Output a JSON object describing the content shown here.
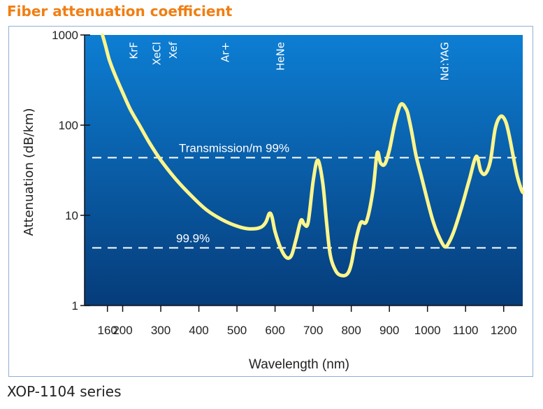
{
  "page": {
    "title": "Fiber attenuation coefficient",
    "caption": "XOP-1104 series"
  },
  "colors": {
    "title": "#f07e12",
    "curve": "#fdf58c",
    "plot_top": "#0d7ed3",
    "plot_bottom": "#063c7a",
    "reference_line": "#ffffff"
  },
  "chart_data": {
    "type": "line",
    "title": "Fiber attenuation coefficient",
    "xlabel": "Wavelength (nm)",
    "ylabel": "Attenuation (dB/km)",
    "xscale": "linear",
    "yscale": "log",
    "xlim": [
      100,
      1250
    ],
    "ylim": [
      1,
      1000
    ],
    "x_ticks": [
      160,
      200,
      300,
      400,
      500,
      600,
      700,
      800,
      900,
      1000,
      1100,
      1200
    ],
    "x_tick_labels": [
      "160",
      "200",
      "300",
      "400",
      "500",
      "600",
      "700",
      "800",
      "900",
      "1000",
      "1100",
      "1200"
    ],
    "y_ticks": [
      1,
      10,
      100,
      1000
    ],
    "y_tick_labels": [
      "1",
      "10",
      "100",
      "1000"
    ],
    "grid": false,
    "legend": "none",
    "series": [
      {
        "name": "Attenuation",
        "x": [
          147,
          155,
          165,
          180,
          200,
          220,
          245,
          270,
          300,
          340,
          380,
          420,
          460,
          500,
          530,
          560,
          575,
          585,
          592,
          600,
          615,
          630,
          643,
          655,
          668,
          677,
          687,
          700,
          712,
          725,
          735,
          745,
          760,
          775,
          790,
          800,
          812,
          825,
          840,
          857,
          868,
          877,
          888,
          900,
          915,
          930,
          945,
          952,
          960,
          970,
          985,
          1000,
          1015,
          1030,
          1045,
          1055,
          1070,
          1090,
          1110,
          1128,
          1140,
          1152,
          1165,
          1178,
          1192,
          1205,
          1215,
          1225,
          1235,
          1245,
          1250
        ],
        "y": [
          1000,
          760,
          530,
          360,
          230,
          150,
          98,
          64,
          41,
          25,
          16.5,
          11.5,
          9,
          7.6,
          7.1,
          7.3,
          8.3,
          10.5,
          9.6,
          6.6,
          4.3,
          3.4,
          3.6,
          5.4,
          8.8,
          7.9,
          8.4,
          24,
          41,
          23,
          8.5,
          3.6,
          2.4,
          2.15,
          2.25,
          2.9,
          5.3,
          8.3,
          8.6,
          19,
          49,
          38,
          37,
          53,
          108,
          170,
          148,
          115,
          78,
          46,
          26,
          14.5,
          8.5,
          5.8,
          4.5,
          4.9,
          6.8,
          12.5,
          25,
          45,
          31,
          29,
          40,
          92,
          125,
          110,
          75,
          45,
          28,
          20,
          18
        ]
      }
    ],
    "reference_lines": [
      {
        "label": "Transmission/m 99%",
        "y": 43.6
      },
      {
        "label": "99.9%",
        "y": 4.36
      }
    ],
    "annotations": [
      {
        "text": "KrF",
        "x": 248
      },
      {
        "text": "XeCl",
        "x": 308
      },
      {
        "text": "Xef",
        "x": 351
      },
      {
        "text": "Ar+",
        "x": 488
      },
      {
        "text": "HeNe",
        "x": 633
      },
      {
        "text": "Nd:YAG",
        "x": 1064
      }
    ]
  }
}
